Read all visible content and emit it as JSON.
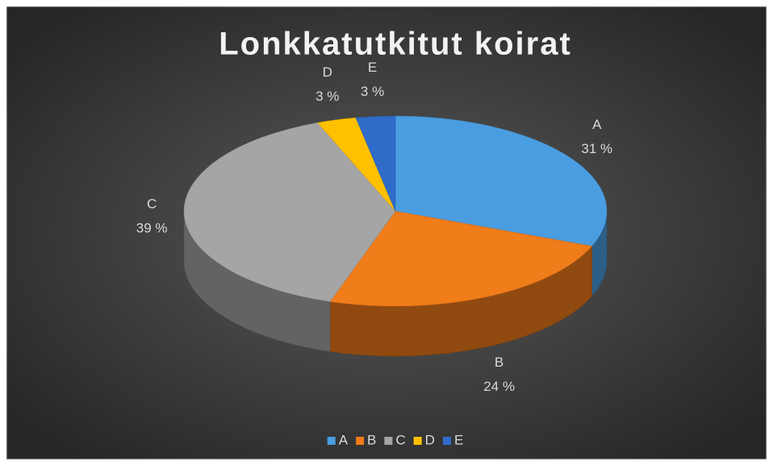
{
  "chart_data": {
    "type": "pie3d",
    "title": "Lonkkatutkitut koirat",
    "categories": [
      "A",
      "B",
      "C",
      "D",
      "E"
    ],
    "values": [
      31,
      24,
      39,
      3,
      3
    ],
    "value_labels": [
      "31 %",
      "24 %",
      "39 %",
      "3 %",
      "3 %"
    ],
    "colors": [
      "#4a9de0",
      "#f07c1a",
      "#a5a5a5",
      "#ffc000",
      "#2f6cc9"
    ],
    "legend": "bottom"
  }
}
